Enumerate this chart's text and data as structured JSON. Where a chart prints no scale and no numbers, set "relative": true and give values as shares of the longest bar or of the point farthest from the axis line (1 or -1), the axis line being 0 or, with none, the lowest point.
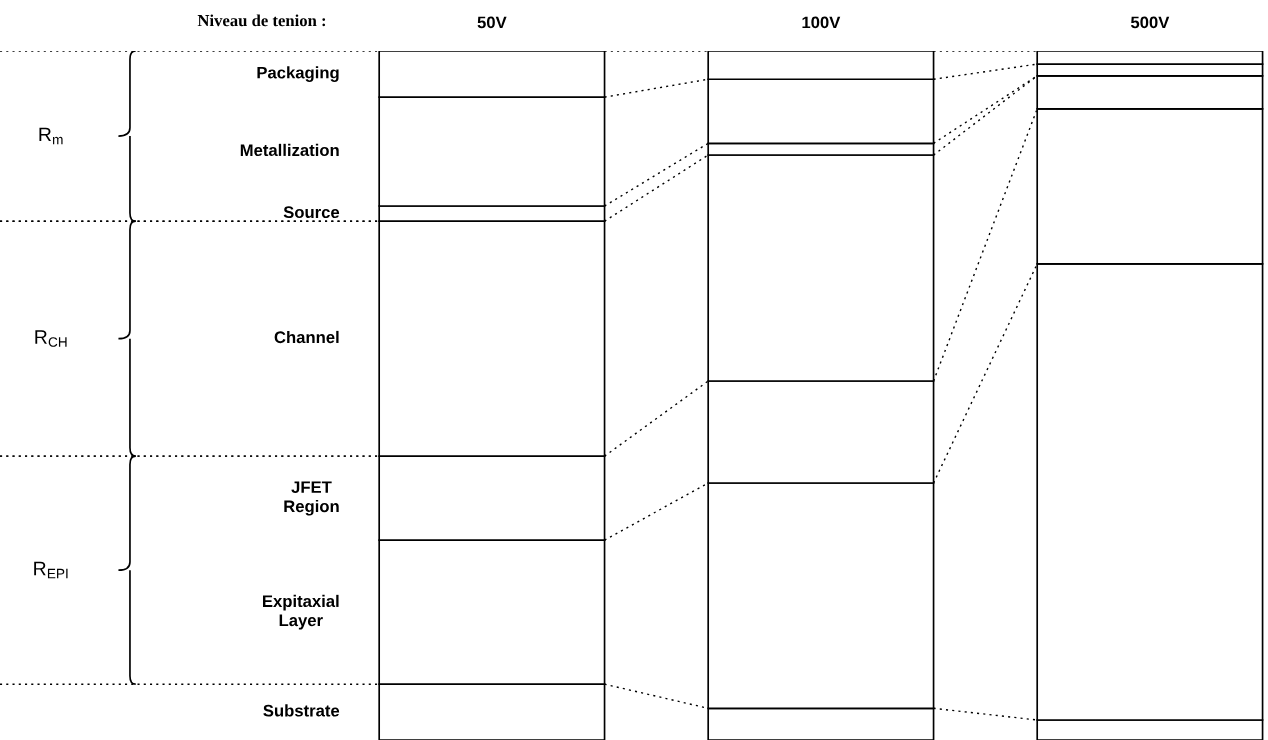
{
  "chart_data": {
    "type": "bar",
    "stacked": true,
    "relative": true,
    "categories": [
      "50V",
      "100V",
      "500V"
    ],
    "series": [
      {
        "name": "Substrate",
        "color": "#ffffff",
        "values": [
          0.081,
          0.046,
          0.029
        ]
      },
      {
        "name": "Expitaxial\nLayer",
        "color": "#ffffff",
        "values": [
          0.209,
          0.327,
          0.662
        ]
      },
      {
        "name": "JFET\nRegion",
        "color": "#ffffff",
        "values": [
          0.122,
          0.148,
          0.225
        ]
      },
      {
        "name": "Channel",
        "color": "#ffffff",
        "values": [
          0.341,
          0.328,
          0.048
        ]
      },
      {
        "name": "Source",
        "color": "#ffffff",
        "values": [
          0.022,
          0.017,
          null
        ]
      },
      {
        "name": "Metallization",
        "color": "#ffffff",
        "values": [
          0.158,
          0.093,
          0.017
        ]
      },
      {
        "name": "Packaging",
        "color": "#ffffff",
        "values": [
          0.067,
          0.041,
          0.019
        ]
      }
    ],
    "annotations": [
      "Niveau de tenion :",
      "R$_{m}$",
      "R$_{CH}$",
      "R$_{EPI}$"
    ]
  }
}
